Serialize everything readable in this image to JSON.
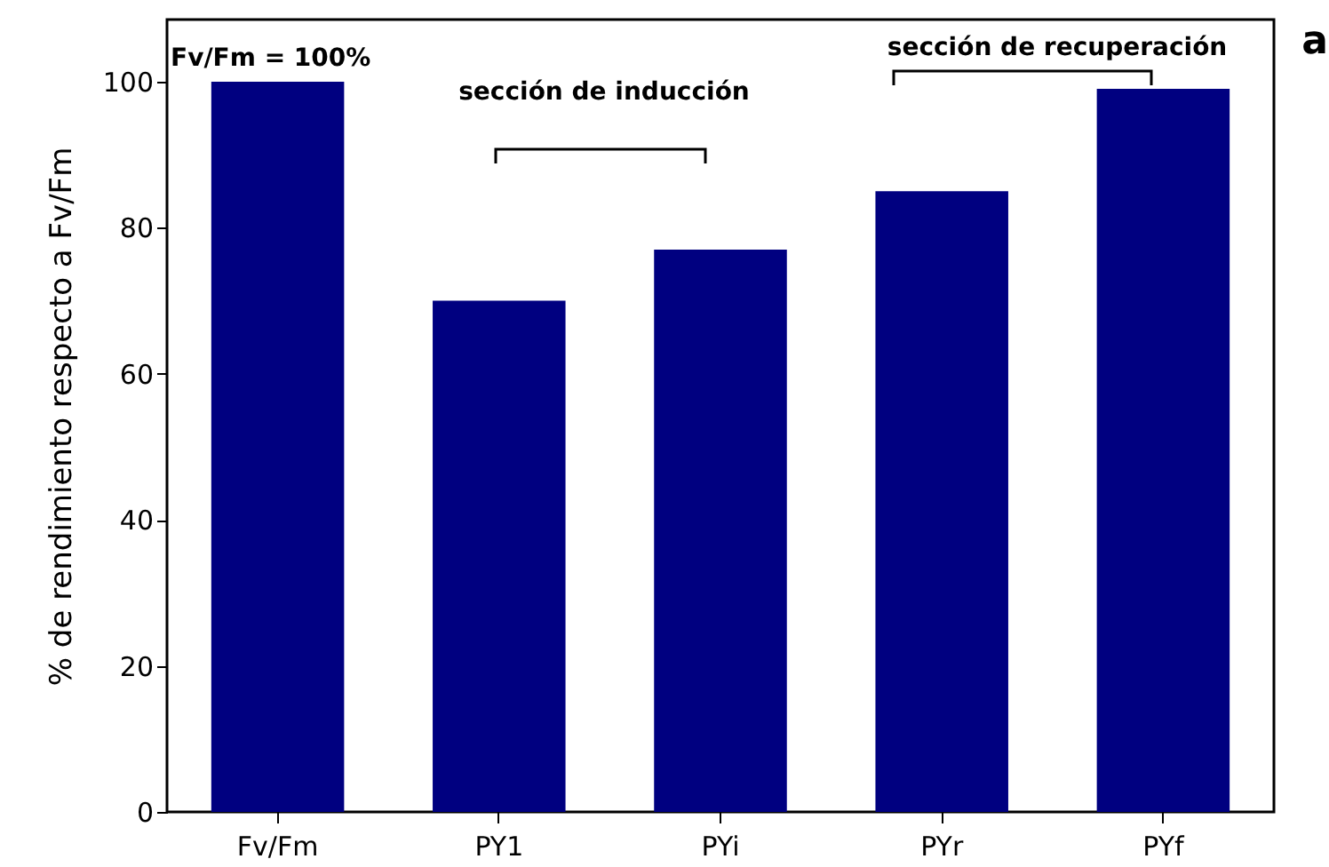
{
  "chart_data": {
    "type": "bar",
    "ylabel": "% de rendimiento respecto a Fv/Fm",
    "categories": [
      "Fv/Fm",
      "PY1",
      "PYi",
      "PYr",
      "PYf"
    ],
    "values": [
      100,
      70,
      77,
      85,
      99
    ],
    "color": "#000080",
    "ylim": [
      0,
      108.5
    ],
    "yticks": [
      0,
      20,
      40,
      60,
      80,
      100
    ],
    "grid": false,
    "annotations": [
      "Fv/Fm = 100%",
      "sección de inducción",
      "sección de recuperación",
      "a"
    ]
  }
}
